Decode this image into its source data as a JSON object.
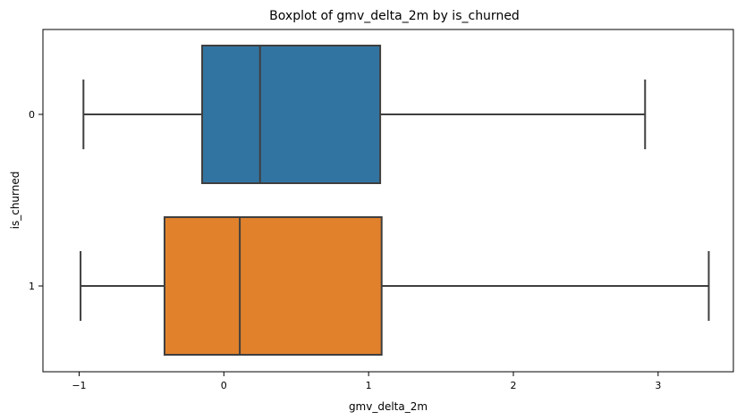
{
  "chart_data": {
    "type": "boxplot",
    "orientation": "horizontal",
    "title": "Boxplot of gmv_delta_2m by is_churned",
    "xlabel": "gmv_delta_2m",
    "ylabel": "is_churned",
    "xlim": [
      -1.25,
      3.52
    ],
    "xticks": [
      -1,
      0,
      1,
      2,
      3
    ],
    "xtick_labels": [
      "−1",
      "0",
      "1",
      "2",
      "3"
    ],
    "categories": [
      "0",
      "1"
    ],
    "boxes": [
      {
        "category": "0",
        "whisker_low": -0.97,
        "q1": -0.15,
        "median": 0.25,
        "q3": 1.08,
        "whisker_high": 2.91,
        "color": "#3274a1"
      },
      {
        "category": "1",
        "whisker_low": -0.99,
        "q1": -0.41,
        "median": 0.11,
        "q3": 1.09,
        "whisker_high": 3.35,
        "color": "#e1812c"
      }
    ],
    "grid": false,
    "legend": "none"
  }
}
